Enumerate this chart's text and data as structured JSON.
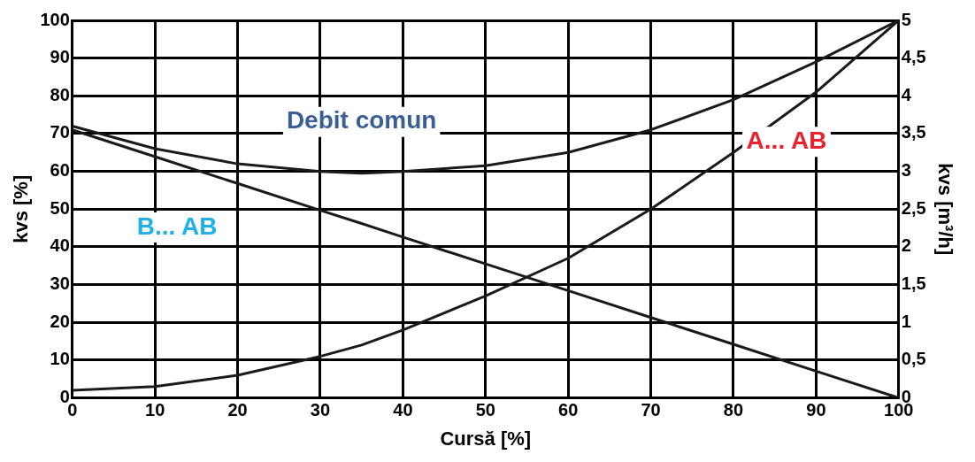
{
  "chart_data": {
    "type": "line",
    "xlabel": "Cursă [%]",
    "ylabel": "kvs [%]",
    "y2label": "kvs [m³/h]",
    "x": [
      0,
      10,
      20,
      30,
      35,
      40,
      50,
      60,
      70,
      80,
      90,
      100
    ],
    "series": [
      {
        "name": "Debit comun",
        "color": "#1a1a1a",
        "values": [
          72,
          66,
          62,
          60,
          59.5,
          60,
          61.5,
          65,
          71,
          79,
          89,
          100
        ]
      },
      {
        "name": "A... AB",
        "color": "#1a1a1a",
        "values": [
          2,
          3,
          6,
          11,
          14,
          18,
          27,
          37,
          50,
          65,
          81,
          100
        ]
      },
      {
        "name": "B... AB",
        "color": "#1a1a1a",
        "values": [
          71,
          63.9,
          56.8,
          49.7,
          46.2,
          42.6,
          35.5,
          28.4,
          21.3,
          14.2,
          7.1,
          0
        ]
      }
    ],
    "xlim": [
      0,
      100
    ],
    "xticks": [
      0,
      10,
      20,
      30,
      40,
      50,
      60,
      70,
      80,
      90,
      100
    ],
    "ylim": [
      0,
      100
    ],
    "yticks": [
      0,
      10,
      20,
      30,
      40,
      50,
      60,
      70,
      80,
      90,
      100
    ],
    "y2lim": [
      0,
      5
    ],
    "y2ticks": [
      0,
      {
        "value": 0.5,
        "label": "0,5"
      },
      1,
      {
        "value": 1.5,
        "label": "1,5"
      },
      2,
      {
        "value": 2.5,
        "label": "2,5"
      },
      3,
      {
        "value": 3.5,
        "label": "3,5"
      },
      4,
      {
        "value": 4.5,
        "label": "4,5"
      },
      5
    ],
    "grid": true,
    "legend": false,
    "marker": "none",
    "line_style": "solid"
  }
}
